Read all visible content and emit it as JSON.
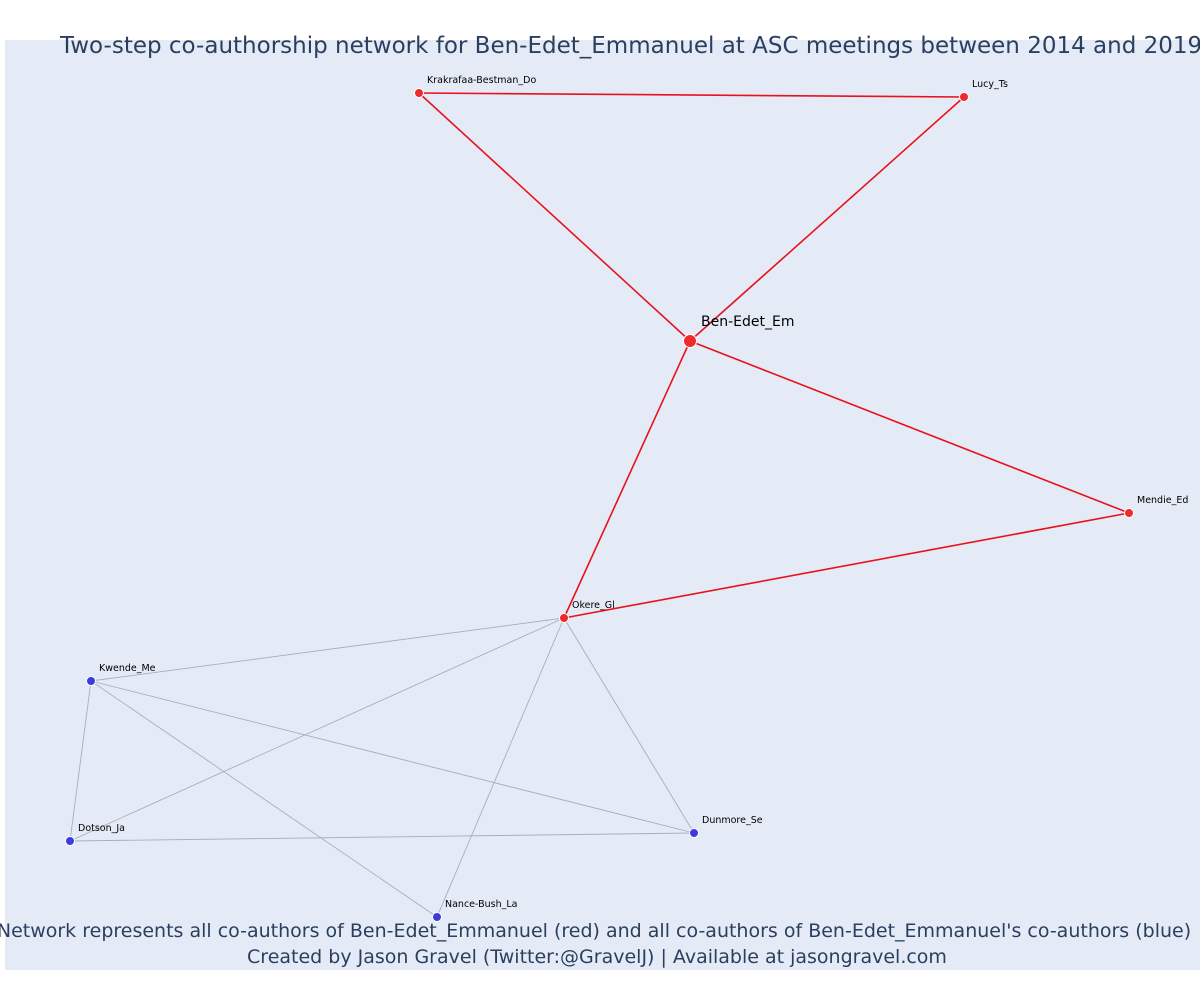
{
  "title": "Two-step co-authorship network for Ben-Edet_Emmanuel at ASC meetings between 2014 and 2019",
  "caption_line1": "Network represents all co-authors of Ben-Edet_Emmanuel (red) and all co-authors of Ben-Edet_Emmanuel's co-authors (blue)",
  "caption_line2": "Created by Jason Gravel (Twitter:@GravelJ) | Available at jasongravel.com",
  "colors": {
    "first_degree": "#ee2a2a",
    "second_degree": "#3b3bdf",
    "grey_edge": "#a9adbb",
    "background": "#e5ebf6"
  },
  "nodes": [
    {
      "id": "ben",
      "label": "Ben-Edet_Em",
      "group": "focal"
    },
    {
      "id": "krak",
      "label": "Krakrafaa-Bestman_Do",
      "group": "red"
    },
    {
      "id": "lucy",
      "label": "Lucy_Ts",
      "group": "red"
    },
    {
      "id": "mendie",
      "label": "Mendie_Ed",
      "group": "red"
    },
    {
      "id": "okere",
      "label": "Okere_Gl",
      "group": "red"
    },
    {
      "id": "kwende",
      "label": "Kwende_Me",
      "group": "blue"
    },
    {
      "id": "dotson",
      "label": "Dotson_Ja",
      "group": "blue"
    },
    {
      "id": "dunmore",
      "label": "Dunmore_Se",
      "group": "blue"
    },
    {
      "id": "nance",
      "label": "Nance-Bush_La",
      "group": "blue"
    }
  ],
  "edges": [
    {
      "source": "krak",
      "target": "lucy",
      "type": "red"
    },
    {
      "source": "krak",
      "target": "ben",
      "type": "red"
    },
    {
      "source": "lucy",
      "target": "ben",
      "type": "red"
    },
    {
      "source": "ben",
      "target": "mendie",
      "type": "red"
    },
    {
      "source": "ben",
      "target": "okere",
      "type": "red"
    },
    {
      "source": "okere",
      "target": "mendie",
      "type": "red"
    },
    {
      "source": "okere",
      "target": "kwende",
      "type": "grey"
    },
    {
      "source": "okere",
      "target": "dotson",
      "type": "grey"
    },
    {
      "source": "okere",
      "target": "nance",
      "type": "grey"
    },
    {
      "source": "okere",
      "target": "dunmore",
      "type": "grey"
    },
    {
      "source": "kwende",
      "target": "dotson",
      "type": "grey"
    },
    {
      "source": "kwende",
      "target": "nance",
      "type": "grey"
    },
    {
      "source": "kwende",
      "target": "dunmore",
      "type": "grey"
    },
    {
      "source": "dotson",
      "target": "dunmore",
      "type": "grey"
    }
  ]
}
